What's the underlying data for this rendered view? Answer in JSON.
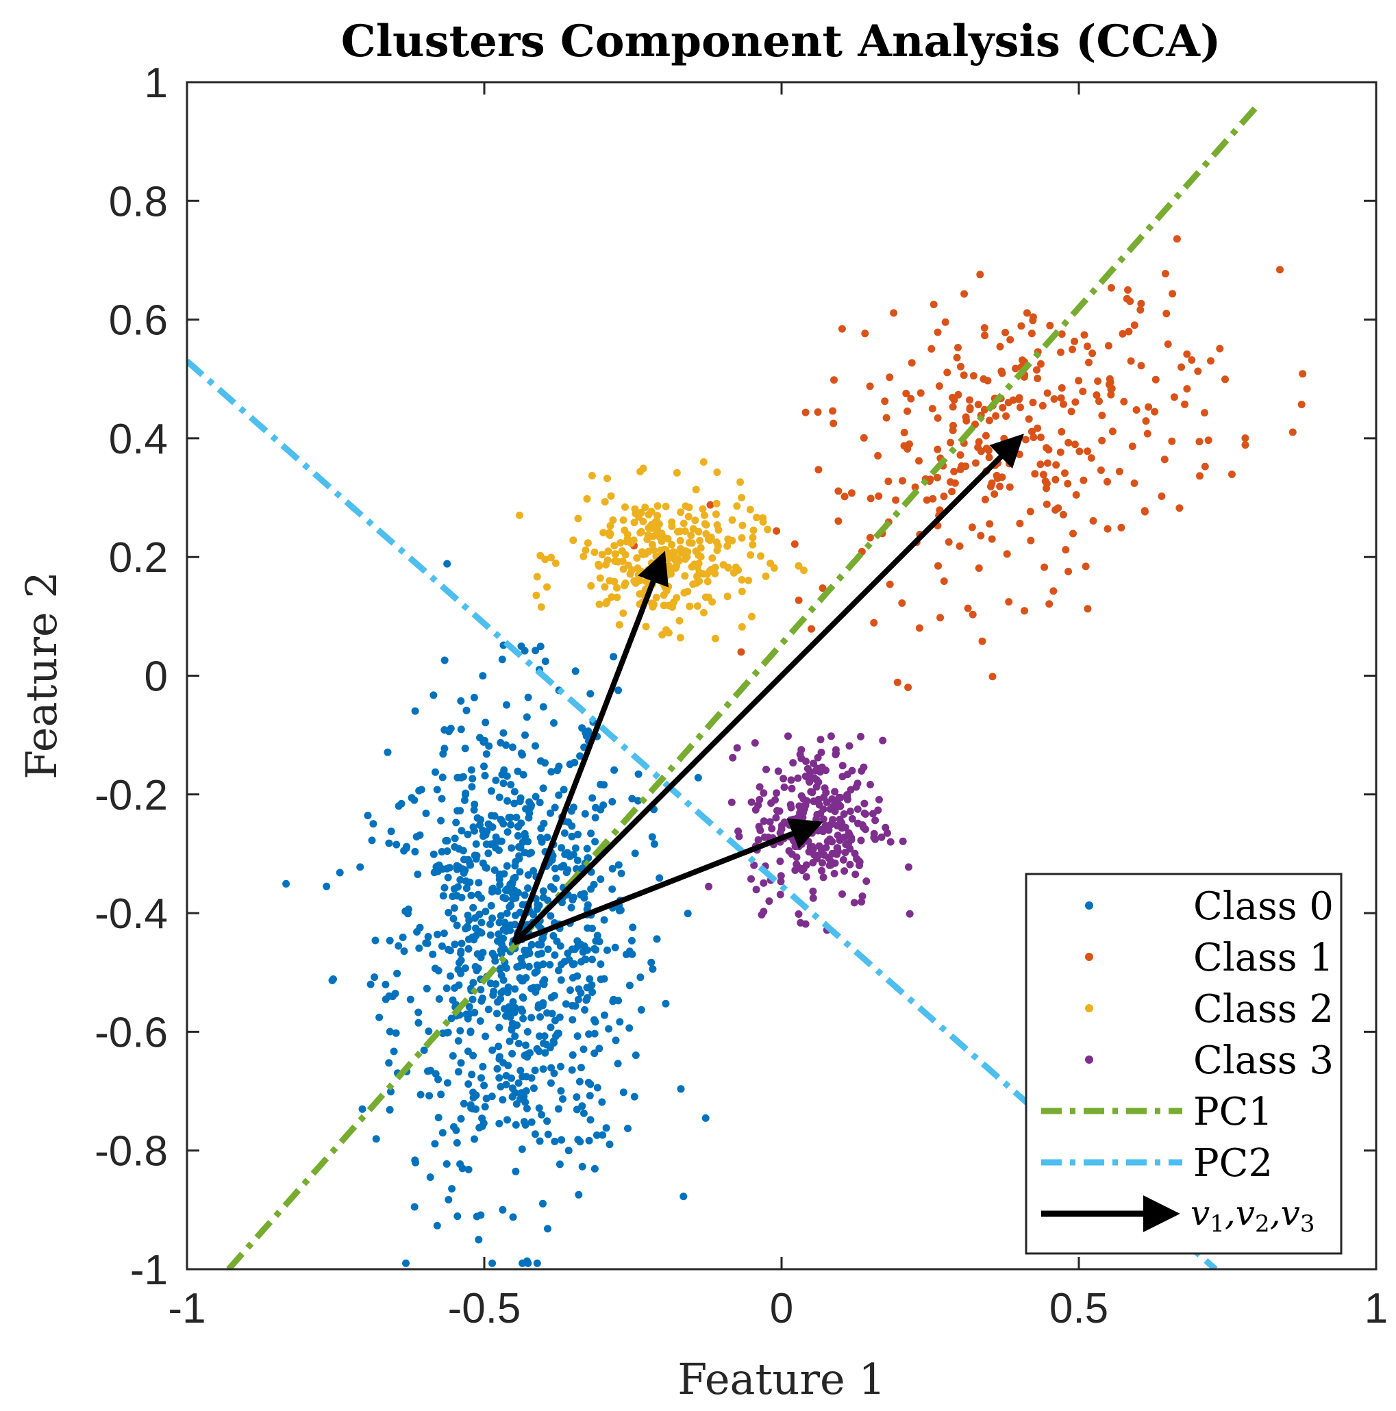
{
  "chart_data": {
    "type": "scatter",
    "title": "Clusters Component Analysis (CCA)",
    "xlabel": "Feature 1",
    "ylabel": "Feature 2",
    "xlim": [
      -1,
      1
    ],
    "ylim": [
      -1,
      1
    ],
    "xticks": [
      -1,
      -0.5,
      0,
      0.5,
      1
    ],
    "xtick_labels": [
      "-1",
      "-0.5",
      "0",
      "0.5",
      "1"
    ],
    "yticks": [
      -1,
      -0.8,
      -0.6,
      -0.4,
      -0.2,
      0,
      0.2,
      0.4,
      0.6,
      0.8,
      1
    ],
    "ytick_labels": [
      "-1",
      "-0.8",
      "-0.6",
      "-0.4",
      "-0.2",
      "0",
      "0.2",
      "0.4",
      "0.6",
      "0.8",
      "1"
    ],
    "series": [
      {
        "name": "Class 0",
        "color": "#0072BD",
        "count": 900,
        "center": [
          -0.45,
          -0.45
        ],
        "spread": [
          0.11,
          0.2
        ],
        "tilt": 0.35
      },
      {
        "name": "Class 1",
        "color": "#D95319",
        "count": 320,
        "center": [
          0.4,
          0.4
        ],
        "spread": [
          0.18,
          0.12
        ],
        "tilt": 0.3
      },
      {
        "name": "Class 2",
        "color": "#EDB120",
        "count": 300,
        "center": [
          -0.2,
          0.2
        ],
        "spread": [
          0.08,
          0.055
        ],
        "tilt": 0.0
      },
      {
        "name": "Class 3",
        "color": "#7E2F8E",
        "count": 280,
        "center": [
          0.06,
          -0.25
        ],
        "spread": [
          0.055,
          0.07
        ],
        "tilt": 0.0
      }
    ],
    "lines": [
      {
        "name": "PC1",
        "color": "#77AC30",
        "style": "dash-dot",
        "x": [
          -0.93,
          0.8
        ],
        "y": [
          -1.0,
          0.96
        ]
      },
      {
        "name": "PC2",
        "color": "#4DBEEE",
        "style": "dash-dot",
        "x": [
          -1.0,
          0.73
        ],
        "y": [
          0.53,
          -1.0
        ]
      }
    ],
    "arrows": [
      {
        "name": "v1",
        "from": [
          -0.45,
          -0.45
        ],
        "to": [
          0.06,
          -0.25
        ]
      },
      {
        "name": "v2",
        "from": [
          -0.45,
          -0.45
        ],
        "to": [
          0.4,
          0.4
        ]
      },
      {
        "name": "v3",
        "from": [
          -0.45,
          -0.45
        ],
        "to": [
          -0.2,
          0.2
        ]
      }
    ],
    "legend": {
      "placement": "bottom-right",
      "entries": [
        "Class 0",
        "Class 1",
        "Class 2",
        "Class 3",
        "PC1",
        "PC2",
        "v1,v2,v3"
      ],
      "arrow_label": {
        "v": "v",
        "subs": [
          "1",
          "2",
          "3"
        ],
        "sep": ","
      }
    },
    "grid": false
  }
}
